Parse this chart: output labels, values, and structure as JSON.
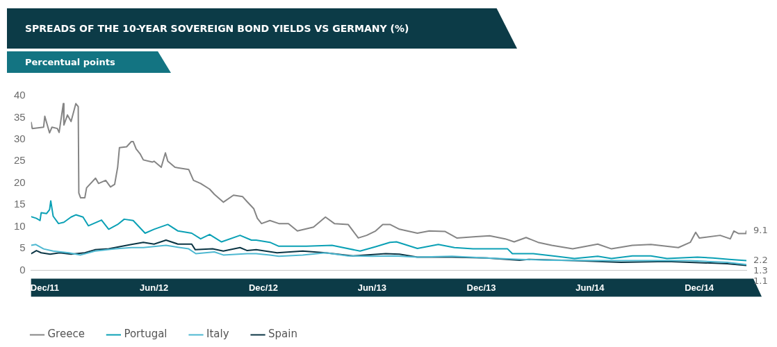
{
  "chart_data": {
    "type": "line",
    "title": "SPREADS OF THE 10-YEAR SOVEREIGN BOND YIELDS VS GERMANY (%)",
    "subtitle": "Percentual points",
    "xlim": [
      "2011-11-08",
      "2015-02-18"
    ],
    "xticks": [
      {
        "value": "2011-12-01",
        "label": "Dec/11"
      },
      {
        "value": "2012-06-01",
        "label": "Jun/12"
      },
      {
        "value": "2012-12-01",
        "label": "Dec/12"
      },
      {
        "value": "2013-06-01",
        "label": "Jun/13"
      },
      {
        "value": "2013-12-01",
        "label": "Dec/13"
      },
      {
        "value": "2014-06-01",
        "label": "Jun/14"
      },
      {
        "value": "2014-12-01",
        "label": "Dec/14"
      }
    ],
    "ylim": [
      0,
      40
    ],
    "yticks": [
      0,
      5,
      10,
      15,
      20,
      25,
      30,
      35,
      40
    ],
    "grid": false,
    "legend": "bottom",
    "marker": "none",
    "line_style": "solid",
    "series": [
      {
        "name": "Greece",
        "color": "#858585",
        "x": [
          "2011-11-08",
          "2011-11-10",
          "2011-11-29",
          "2011-12-01",
          "2011-12-09",
          "2011-12-13",
          "2011-12-22",
          "2011-12-25",
          "2012-01-01",
          "2012-01-02",
          "2012-01-08",
          "2012-01-14",
          "2012-01-22",
          "2012-01-26",
          "2012-01-27",
          "2012-01-30",
          "2012-02-06",
          "2012-02-09",
          "2012-02-24",
          "2012-02-29",
          "2012-03-12",
          "2012-03-20",
          "2012-03-27",
          "2012-04-01",
          "2012-04-04",
          "2012-04-16",
          "2012-04-24",
          "2012-04-27",
          "2012-05-02",
          "2012-05-09",
          "2012-05-14",
          "2012-05-29",
          "2012-06-01",
          "2012-06-13",
          "2012-06-20",
          "2012-06-24",
          "2012-07-06",
          "2012-07-29",
          "2012-08-06",
          "2012-08-18",
          "2012-09-02",
          "2012-09-10",
          "2012-09-25",
          "2012-10-12",
          "2012-10-27",
          "2012-11-04",
          "2012-11-15",
          "2012-11-21",
          "2012-11-28",
          "2012-12-12",
          "2012-12-27",
          "2013-01-12",
          "2013-01-27",
          "2013-02-23",
          "2013-03-15",
          "2013-03-30",
          "2013-04-22",
          "2013-05-09",
          "2013-05-23",
          "2013-06-07",
          "2013-06-19",
          "2013-07-01",
          "2013-07-17",
          "2013-08-16",
          "2013-09-05",
          "2013-10-01",
          "2013-10-21",
          "2013-11-22",
          "2013-12-15",
          "2014-01-10",
          "2014-01-25",
          "2014-02-14",
          "2014-03-06",
          "2014-03-29",
          "2014-05-03",
          "2014-06-14",
          "2014-07-07",
          "2014-08-11",
          "2014-09-11",
          "2014-10-27",
          "2014-11-16",
          "2014-11-25",
          "2014-12-01",
          "2015-01-05",
          "2015-01-22",
          "2015-01-28",
          "2015-02-05",
          "2015-02-17",
          "2015-02-18"
        ],
        "values": [
          34.0,
          32.5,
          32.8,
          35.3,
          31.5,
          32.8,
          32.5,
          31.6,
          38.2,
          33.3,
          35.6,
          34.1,
          38.2,
          37.5,
          17.7,
          16.6,
          16.6,
          18.9,
          21.1,
          19.9,
          20.6,
          19.1,
          19.7,
          23.6,
          28.1,
          28.3,
          29.5,
          29.5,
          27.8,
          26.6,
          25.3,
          24.8,
          25.0,
          23.6,
          26.9,
          25.0,
          23.6,
          23.1,
          20.6,
          19.9,
          18.6,
          17.4,
          15.6,
          17.2,
          16.9,
          15.7,
          14.1,
          11.9,
          10.7,
          11.4,
          10.7,
          10.7,
          9.0,
          9.9,
          12.2,
          10.7,
          10.5,
          7.4,
          8.0,
          9.0,
          10.5,
          10.5,
          9.4,
          8.5,
          9.0,
          8.9,
          7.4,
          7.7,
          7.9,
          7.2,
          6.5,
          7.5,
          6.4,
          5.7,
          4.9,
          6.0,
          4.9,
          5.7,
          5.9,
          5.2,
          6.4,
          8.7,
          7.4,
          8.0,
          7.2,
          9.0,
          8.4,
          8.4,
          9.1
        ]
      },
      {
        "name": "Portugal",
        "color": "#0aa0b5",
        "x": [
          "2011-11-08",
          "2011-11-17",
          "2011-11-23",
          "2011-11-25",
          "2011-12-04",
          "2011-12-09",
          "2011-12-11",
          "2011-12-15",
          "2011-12-24",
          "2012-01-02",
          "2012-01-14",
          "2012-01-22",
          "2012-02-03",
          "2012-02-12",
          "2012-03-05",
          "2012-03-17",
          "2012-04-01",
          "2012-04-12",
          "2012-04-27",
          "2012-05-17",
          "2012-06-01",
          "2012-06-24",
          "2012-07-11",
          "2012-08-03",
          "2012-08-18",
          "2012-09-02",
          "2012-09-22",
          "2012-10-23",
          "2012-11-11",
          "2012-11-19",
          "2012-12-12",
          "2012-12-27",
          "2013-02-11",
          "2013-03-26",
          "2013-05-12",
          "2013-06-07",
          "2013-07-01",
          "2013-07-12",
          "2013-08-16",
          "2013-09-20",
          "2013-10-17",
          "2013-11-17",
          "2014-01-14",
          "2014-01-22",
          "2014-02-26",
          "2014-04-05",
          "2014-05-06",
          "2014-06-14",
          "2014-07-07",
          "2014-08-11",
          "2014-09-11",
          "2014-10-08",
          "2014-11-28",
          "2014-12-24",
          "2015-01-20",
          "2015-02-18"
        ],
        "values": [
          12.3,
          11.9,
          11.4,
          13.2,
          13.0,
          13.9,
          15.9,
          12.4,
          10.7,
          11.0,
          12.2,
          12.7,
          12.2,
          10.2,
          11.5,
          9.4,
          10.5,
          11.7,
          11.4,
          8.5,
          9.4,
          10.5,
          9.0,
          8.5,
          7.2,
          8.2,
          6.5,
          8.0,
          6.9,
          6.9,
          6.4,
          5.5,
          5.5,
          5.7,
          4.4,
          5.4,
          6.4,
          6.5,
          5.0,
          5.9,
          5.2,
          4.9,
          4.9,
          3.8,
          3.8,
          3.2,
          2.7,
          3.2,
          2.7,
          3.3,
          3.3,
          2.7,
          3.0,
          2.8,
          2.5,
          2.2
        ]
      },
      {
        "name": "Italy",
        "color": "#4db8d1",
        "x": [
          "2011-11-08",
          "2011-11-16",
          "2011-11-29",
          "2011-12-15",
          "2012-01-10",
          "2012-01-30",
          "2012-02-23",
          "2012-03-28",
          "2012-04-24",
          "2012-05-14",
          "2012-06-21",
          "2012-07-29",
          "2012-08-10",
          "2012-09-10",
          "2012-09-25",
          "2012-11-04",
          "2012-11-19",
          "2012-12-12",
          "2012-12-27",
          "2013-02-05",
          "2013-03-15",
          "2013-04-22",
          "2013-06-01",
          "2013-07-09",
          "2013-08-16",
          "2013-10-13",
          "2013-12-10",
          "2014-02-03",
          "2014-03-29",
          "2014-06-14",
          "2014-08-31",
          "2014-11-16",
          "2015-01-17",
          "2015-02-18"
        ],
        "values": [
          5.7,
          5.9,
          4.9,
          4.4,
          4.0,
          3.5,
          4.4,
          4.9,
          5.2,
          5.2,
          5.7,
          4.9,
          3.8,
          4.2,
          3.5,
          3.8,
          3.8,
          3.5,
          3.2,
          3.5,
          4.0,
          3.3,
          3.2,
          3.3,
          3.0,
          3.2,
          2.8,
          2.5,
          2.3,
          2.2,
          2.2,
          2.2,
          1.8,
          1.3
        ]
      },
      {
        "name": "Spain",
        "color": "#0b3544",
        "x": [
          "2011-11-08",
          "2011-11-17",
          "2011-11-25",
          "2011-12-10",
          "2011-12-26",
          "2012-01-14",
          "2012-02-06",
          "2012-02-23",
          "2012-03-17",
          "2012-04-04",
          "2012-04-24",
          "2012-05-14",
          "2012-06-01",
          "2012-06-21",
          "2012-07-11",
          "2012-08-03",
          "2012-08-09",
          "2012-09-07",
          "2012-09-25",
          "2012-10-23",
          "2012-11-04",
          "2012-11-19",
          "2012-12-24",
          "2013-02-05",
          "2013-03-15",
          "2013-04-30",
          "2013-06-24",
          "2013-07-17",
          "2013-08-16",
          "2013-10-13",
          "2013-12-10",
          "2014-02-03",
          "2014-02-18",
          "2014-05-06",
          "2014-07-23",
          "2014-10-08",
          "2015-01-17",
          "2015-02-18"
        ],
        "values": [
          3.8,
          4.5,
          4.0,
          3.7,
          4.0,
          3.7,
          4.0,
          4.7,
          4.9,
          5.4,
          5.9,
          6.4,
          6.0,
          6.9,
          6.0,
          6.0,
          4.7,
          4.9,
          4.4,
          5.2,
          4.5,
          4.7,
          4.0,
          4.4,
          4.0,
          3.3,
          3.8,
          3.7,
          3.0,
          3.0,
          2.8,
          2.3,
          2.5,
          2.2,
          1.8,
          2.0,
          1.5,
          1.1
        ]
      }
    ],
    "annotations": [
      {
        "text": "9.1",
        "x": "2015-02-18",
        "y": 9.1
      },
      {
        "text": "2.2",
        "x": "2015-02-18",
        "y": 2.2
      },
      {
        "text": "1.3",
        "x": "2015-02-18",
        "y": 1.3
      },
      {
        "text": "1.1",
        "x": "2015-02-18",
        "y": 1.1
      }
    ]
  }
}
